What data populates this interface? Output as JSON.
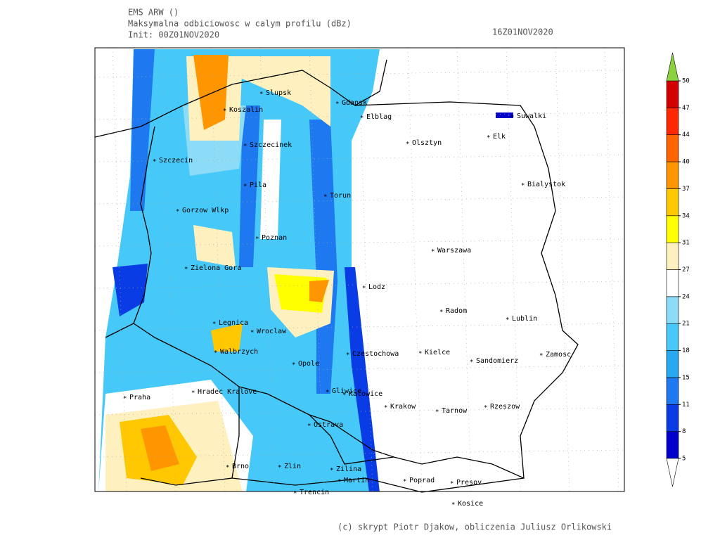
{
  "header": {
    "model": "EMS ARW ()",
    "field": "Maksymalna odbiciowosc w calym profilu (dBz)",
    "init": "Init: 00Z01NOV2020",
    "valid": "16Z01NOV2020"
  },
  "cities": [
    "Slupsk",
    "Koszalin",
    "Gdansk",
    "Elblag",
    "Suwalki",
    "Olsztyn",
    "Elk",
    "Szczecinek",
    "Szczecin",
    "Bialystok",
    "Pila",
    "Torun",
    "Gorzow Wlkp",
    "Poznan",
    "Warszawa",
    "Zielona Gora",
    "Lodz",
    "Radom",
    "Lublin",
    "Legnica",
    "Wroclaw",
    "Walbrzych",
    "Czestochowa",
    "Kielce",
    "Zamosc",
    "Opole",
    "Sandomierz",
    "Hradec Kralove",
    "Praha",
    "Gliwice",
    "Katowice",
    "Krakow",
    "Tarnow",
    "Rzeszow",
    "Ostrava",
    "Brno",
    "Zlin",
    "Zilina",
    "Martin",
    "Poprad",
    "Presov",
    "Trencin",
    "Kosice"
  ],
  "colorbar": {
    "ticks": [
      5,
      8,
      11,
      15,
      18,
      21,
      24,
      27,
      31,
      34,
      37,
      40,
      44,
      47,
      50
    ],
    "colors": [
      "#0000c8",
      "#0a3ce6",
      "#1e78f0",
      "#28a8f0",
      "#46c8f8",
      "#8cdcf8",
      "#ffffff",
      "#fff0c0",
      "#ffff00",
      "#ffc800",
      "#ff9600",
      "#ff6400",
      "#ff2800",
      "#d20000"
    ],
    "over_color": "#8cd23c",
    "under_color": "#ffffff"
  },
  "footer": "(c) skrypt Piotr Djakow, obliczenia Juliusz Orlikowski"
}
